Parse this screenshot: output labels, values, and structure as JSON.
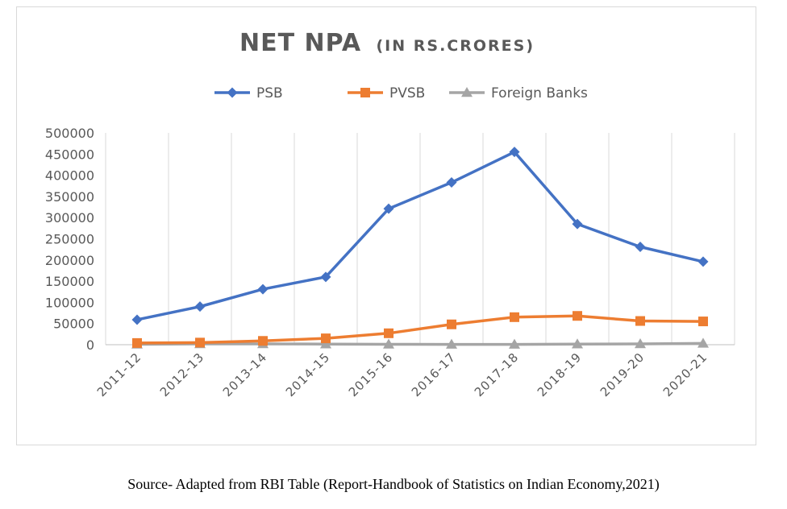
{
  "chart_data": {
    "type": "line",
    "title": "NET NPA",
    "subtitle": "(IN RS.CRORES)",
    "categories": [
      "2011-12",
      "2012-13",
      "2013-14",
      "2014-15",
      "2015-16",
      "2016-17",
      "2017-18",
      "2018-19",
      "2019-20",
      "2020-21"
    ],
    "series": [
      {
        "name": "PSB",
        "color": "#4472C4",
        "marker": "diamond",
        "values": [
          59000,
          90000,
          131000,
          160000,
          321000,
          383000,
          455000,
          285000,
          231000,
          196000
        ]
      },
      {
        "name": "PVSB",
        "color": "#ED7D31",
        "marker": "square",
        "values": [
          4000,
          5000,
          9000,
          15000,
          27000,
          48000,
          65000,
          68000,
          56000,
          55000
        ]
      },
      {
        "name": "Foreign Banks",
        "color": "#A5A5A5",
        "marker": "triangle",
        "values": [
          1000,
          2000,
          2000,
          1500,
          1000,
          800,
          600,
          1500,
          1800,
          3000
        ]
      }
    ],
    "ylim": [
      0,
      500000
    ],
    "yticks": [
      0,
      50000,
      100000,
      150000,
      200000,
      250000,
      300000,
      350000,
      400000,
      450000,
      500000
    ],
    "ytick_labels": [
      "0",
      "50000",
      "100000",
      "150000",
      "200000",
      "250000",
      "300000",
      "350000",
      "400000",
      "450000",
      "500000"
    ],
    "xlabel": "",
    "ylabel": "",
    "grid": "vertical",
    "legend_position": "top-center"
  },
  "source_note": "Source- Adapted from RBI Table (Report-Handbook of Statistics on Indian Economy,2021)"
}
